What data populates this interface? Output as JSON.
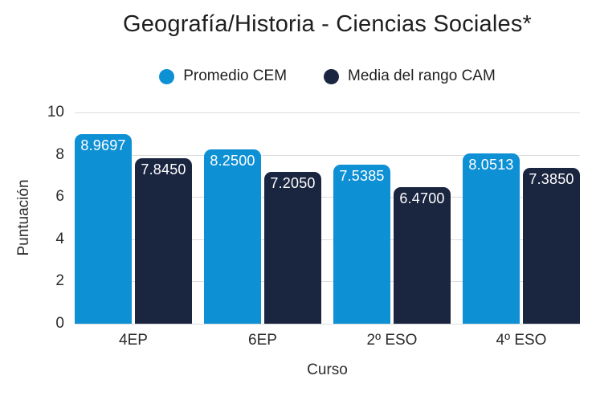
{
  "chart_data": {
    "type": "bar",
    "title": "Geografía/Historia - Ciencias Sociales*",
    "categories": [
      "4EP",
      "6EP",
      "2º ESO",
      "4º ESO"
    ],
    "series": [
      {
        "name": "Promedio CEM",
        "color": "#0e90d5",
        "values": [
          8.9697,
          8.25,
          7.5385,
          8.0513
        ],
        "labels": [
          "8.9697",
          "8.2500",
          "7.5385",
          "8.0513"
        ]
      },
      {
        "name": "Media del rango CAM",
        "color": "#1a2540",
        "values": [
          7.845,
          7.205,
          6.47,
          7.385
        ],
        "labels": [
          "7.8450",
          "7.2050",
          "6.4700",
          "7.3850"
        ]
      }
    ],
    "xlabel": "Curso",
    "ylabel": "Puntuación",
    "ylim": [
      0,
      10
    ],
    "yticks": [
      10,
      8,
      6,
      4,
      2,
      0
    ],
    "grid": true,
    "legend_position": "top",
    "background_color": "#ffffff",
    "gridline_color": "#dcdcdc",
    "text_color": "#1f1f1f"
  }
}
